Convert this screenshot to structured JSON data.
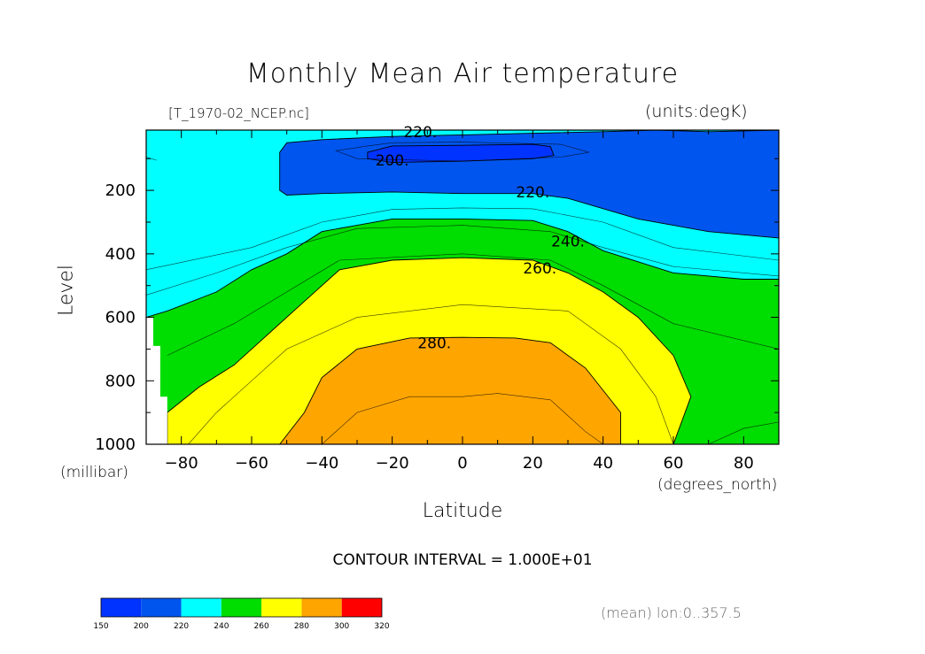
{
  "header": {
    "title": "Monthly Mean Air temperature",
    "file_label": "[T_1970-02_NCEP.nc]",
    "units_label": "(units:degK)"
  },
  "footer": {
    "contour_interval": "CONTOUR INTERVAL = 1.000E+01",
    "mean_label": "(mean) lon:0..357.5"
  },
  "colors": {
    "band_150_200": "#0033ff",
    "band_200_220": "#0055ee",
    "band_220_240": "#00ffff",
    "band_240_260": "#00dd00",
    "band_260_280": "#ffff00",
    "band_280_300": "#ffa500",
    "band_300_320": "#ff0000"
  },
  "chart_data": {
    "type": "contour",
    "title": "Monthly Mean Air temperature",
    "variable": "T",
    "units": "degK",
    "xlabel": "Latitude",
    "xunits": "(degrees_north)",
    "ylabel": "Level",
    "yunits": "(millibar)",
    "xlim": [
      -90,
      90
    ],
    "ylim": [
      1000,
      10
    ],
    "xticks": [
      -80,
      -60,
      -40,
      -20,
      0,
      20,
      40,
      60,
      80
    ],
    "xtick_labels": [
      "−80",
      "−60",
      "−40",
      "−20",
      "0",
      "20",
      "40",
      "60",
      "80"
    ],
    "yticks": [
      200,
      400,
      600,
      800,
      1000
    ],
    "contour_interval": 10,
    "contour_labels": [
      {
        "text": "220.",
        "lat": -12,
        "level": 15
      },
      {
        "text": "200.",
        "lat": -20,
        "level": 105
      },
      {
        "text": "220.",
        "lat": 20,
        "level": 205
      },
      {
        "text": "240.",
        "lat": 30,
        "level": 360
      },
      {
        "text": "260.",
        "lat": 22,
        "level": 445
      },
      {
        "text": "280.",
        "lat": -8,
        "level": 680
      }
    ],
    "filled_contours": [
      {
        "range": [
          180,
          200
        ],
        "color": "#0033ff",
        "boundary": [
          [
            -27,
            80
          ],
          [
            -20,
            60
          ],
          [
            0,
            58
          ],
          [
            20,
            55
          ],
          [
            25,
            62
          ],
          [
            26,
            90
          ],
          [
            20,
            100
          ],
          [
            0,
            108
          ],
          [
            -20,
            112
          ],
          [
            -27,
            100
          ]
        ]
      },
      {
        "range": [
          200,
          220
        ],
        "color": "#0055ee",
        "boundary": [
          [
            -52,
            80
          ],
          [
            -50,
            50
          ],
          [
            -40,
            40
          ],
          [
            -20,
            30
          ],
          [
            0,
            25
          ],
          [
            20,
            20
          ],
          [
            40,
            15
          ],
          [
            55,
            10
          ],
          [
            70,
            15
          ],
          [
            90,
            10
          ],
          [
            90,
            350
          ],
          [
            70,
            330
          ],
          [
            50,
            290
          ],
          [
            30,
            225
          ],
          [
            20,
            210
          ],
          [
            0,
            210
          ],
          [
            -20,
            205
          ],
          [
            -40,
            210
          ],
          [
            -50,
            215
          ],
          [
            -52,
            200
          ]
        ]
      },
      {
        "range": [
          240,
          260
        ],
        "color": "#00dd00",
        "boundary": [
          [
            -90,
            600
          ],
          [
            -84,
            580
          ],
          [
            -70,
            520
          ],
          [
            -60,
            450
          ],
          [
            -50,
            400
          ],
          [
            -40,
            330
          ],
          [
            -20,
            290
          ],
          [
            0,
            290
          ],
          [
            20,
            295
          ],
          [
            30,
            330
          ],
          [
            40,
            390
          ],
          [
            60,
            460
          ],
          [
            80,
            480
          ],
          [
            90,
            480
          ],
          [
            90,
            1000
          ],
          [
            -90,
            1000
          ]
        ]
      },
      {
        "range": [
          260,
          280
        ],
        "color": "#ffff00",
        "boundary": [
          [
            -84,
            900
          ],
          [
            -75,
            820
          ],
          [
            -65,
            750
          ],
          [
            -55,
            650
          ],
          [
            -45,
            550
          ],
          [
            -35,
            450
          ],
          [
            -20,
            420
          ],
          [
            0,
            412
          ],
          [
            20,
            420
          ],
          [
            30,
            460
          ],
          [
            40,
            520
          ],
          [
            50,
            600
          ],
          [
            60,
            720
          ],
          [
            65,
            850
          ],
          [
            60,
            1000
          ],
          [
            -84,
            1000
          ]
        ]
      },
      {
        "range": [
          280,
          300
        ],
        "color": "#ffa500",
        "boundary": [
          [
            -52,
            1000
          ],
          [
            -45,
            900
          ],
          [
            -40,
            790
          ],
          [
            -30,
            700
          ],
          [
            -15,
            665
          ],
          [
            0,
            663
          ],
          [
            15,
            665
          ],
          [
            25,
            680
          ],
          [
            35,
            760
          ],
          [
            45,
            900
          ],
          [
            45,
            1000
          ]
        ]
      }
    ],
    "colorbar": {
      "levels": [
        150,
        200,
        220,
        240,
        260,
        280,
        300,
        320
      ],
      "labels": [
        "150",
        "200",
        "220",
        "240",
        "260",
        "280",
        "300",
        "320"
      ],
      "colors": [
        "#0033ff",
        "#0055ee",
        "#00ffff",
        "#00dd00",
        "#ffff00",
        "#ffa500",
        "#ff0000"
      ]
    }
  }
}
